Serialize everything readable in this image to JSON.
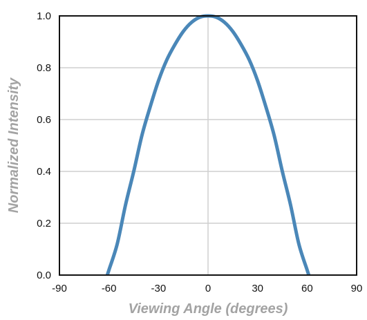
{
  "chart_data": {
    "type": "line",
    "title": "",
    "xlabel": "Viewing Angle (degrees)",
    "ylabel": "Normalized Intensity",
    "xlim": [
      -90,
      90
    ],
    "ylim": [
      0,
      1
    ],
    "xticks": [
      "-90",
      "-60",
      "-30",
      "0",
      "30",
      "60",
      "90"
    ],
    "yticks": [
      "0.0",
      "0.2",
      "0.4",
      "0.6",
      "0.8",
      "1.0"
    ],
    "grid": true,
    "legend": "none",
    "series": [
      {
        "color": "#4a87b8",
        "x": [
          -61,
          -60,
          -55,
          -50,
          -45,
          -40,
          -35,
          -30,
          -25,
          -20,
          -15,
          -10,
          -5,
          0,
          5,
          10,
          15,
          20,
          25,
          30,
          35,
          40,
          45,
          50,
          55,
          60,
          61
        ],
        "y": [
          0.0,
          0.02,
          0.12,
          0.27,
          0.4,
          0.54,
          0.65,
          0.75,
          0.83,
          0.89,
          0.94,
          0.975,
          0.995,
          1.0,
          0.995,
          0.975,
          0.94,
          0.89,
          0.83,
          0.75,
          0.65,
          0.54,
          0.4,
          0.27,
          0.12,
          0.02,
          0.0
        ]
      }
    ]
  }
}
